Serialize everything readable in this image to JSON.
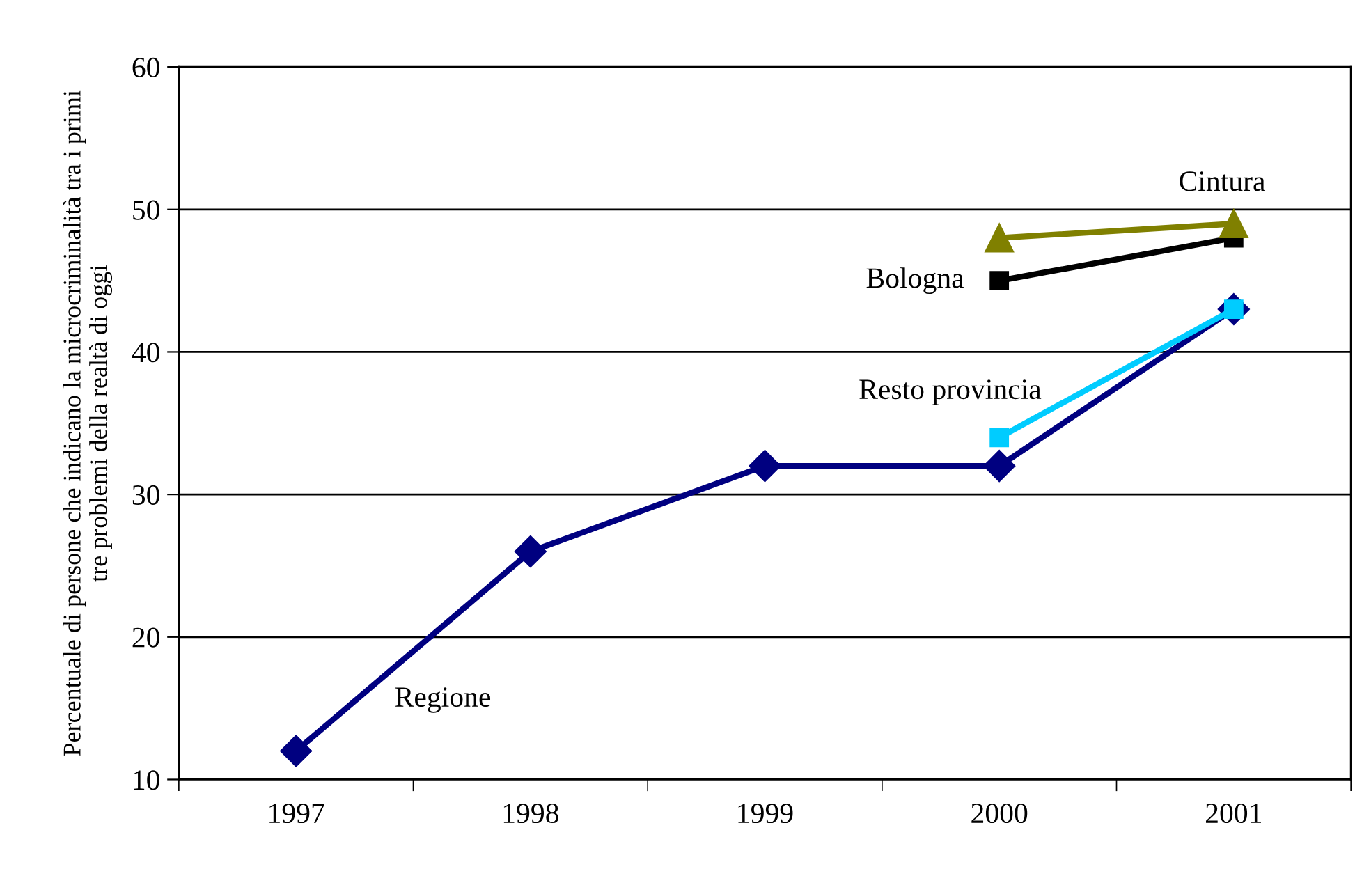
{
  "chart_data": {
    "type": "line",
    "ylabel": "Percentuale di persone che indicano la microcriminalità tra i primi\ntre problemi della realtà di oggi",
    "categories": [
      "1997",
      "1998",
      "1999",
      "2000",
      "2001"
    ],
    "series": [
      {
        "name": "Regione",
        "color": "#000080",
        "marker": "diamond",
        "values": [
          12,
          26,
          32,
          32,
          43
        ]
      },
      {
        "name": "Bologna",
        "color": "#000000",
        "marker": "square",
        "values": [
          null,
          null,
          null,
          45,
          48
        ]
      },
      {
        "name": "Cintura",
        "color": "#808000",
        "marker": "triangle",
        "values": [
          null,
          null,
          null,
          48,
          49
        ]
      },
      {
        "name": "Resto provincia",
        "color": "#00ccff",
        "marker": "square",
        "values": [
          null,
          null,
          null,
          34,
          43
        ]
      }
    ],
    "ylim": [
      10,
      60
    ],
    "yticks": [
      10,
      20,
      30,
      40,
      50,
      60
    ],
    "grid": "y",
    "legend": false
  }
}
